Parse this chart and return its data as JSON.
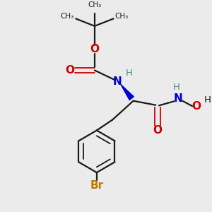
{
  "bg_color": "#ebebeb",
  "bond_color": "#1a1a1a",
  "oxygen_color": "#cc0000",
  "nitrogen_color": "#0000cc",
  "bromine_color": "#b87a00",
  "teal_color": "#4a9090",
  "figsize": [
    3.0,
    3.0
  ],
  "dpi": 100,
  "xlim": [
    0,
    10
  ],
  "ylim": [
    0,
    10
  ]
}
